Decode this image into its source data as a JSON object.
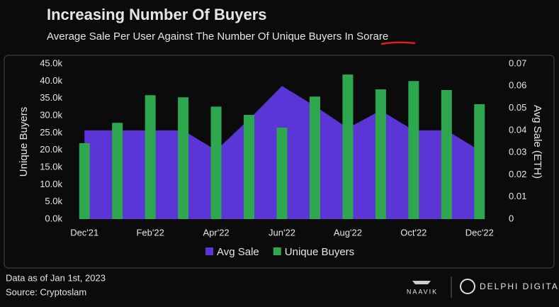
{
  "chart_data": {
    "type": "bar-area",
    "title": "Increasing Number Of Buyers",
    "subtitle": "Average Sale Per User Against The Number Of Unique Buyers In Sorare",
    "y_label": "Unique Buyers",
    "y2_label": "Avg Sale (ETH)",
    "categories": [
      "Dec'21",
      null,
      "Feb'22",
      null,
      "Apr'22",
      null,
      "Jun'22",
      null,
      "Aug'22",
      null,
      "Oct'22",
      null,
      "Dec'22"
    ],
    "series": [
      {
        "name": "Avg Sale",
        "color": "#5b35d5",
        "axis": "y2",
        "kind": "area",
        "values": [
          0.04,
          0.04,
          0.04,
          0.04,
          0.031,
          0.045,
          0.06,
          0.051,
          0.041,
          0.049,
          0.04,
          0.04,
          0.031
        ]
      },
      {
        "name": "Unique Buyers",
        "color": "#2ea84e",
        "kind": "bar",
        "values": [
          22000,
          27900,
          35900,
          35300,
          32600,
          30200,
          26500,
          35500,
          41900,
          37600,
          40000,
          37400,
          33300
        ]
      }
    ],
    "ylim": [
      0,
      45000
    ],
    "yticks": [
      {
        "value": 0,
        "label": "0.0k"
      },
      {
        "value": 5000,
        "label": "5.0k"
      },
      {
        "value": 10000,
        "label": "10.0k"
      },
      {
        "value": 15000,
        "label": "15.0k"
      },
      {
        "value": 20000,
        "label": "20.0k"
      },
      {
        "value": 25000,
        "label": "25.0k"
      },
      {
        "value": 30000,
        "label": "30.0k"
      },
      {
        "value": 35000,
        "label": "35.0k"
      },
      {
        "value": 40000,
        "label": "40.0k"
      },
      {
        "value": 45000,
        "label": "45.0k"
      }
    ],
    "y2lim": [
      0,
      0.07
    ],
    "y2ticks": [
      0,
      0.01,
      0.02,
      0.03,
      0.04,
      0.05,
      0.06,
      0.07
    ],
    "legend": "bottom",
    "footer_note": "Data as of Jan 1st, 2023",
    "source": "Source: Cryptoslam",
    "logos": [
      "NAAVIK",
      "DELPHI DIGITAL"
    ]
  }
}
